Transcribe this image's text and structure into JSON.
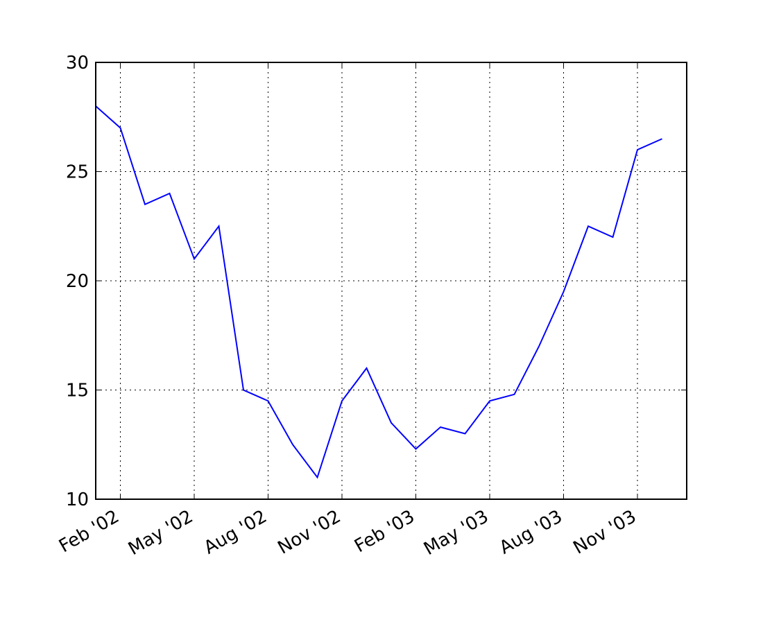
{
  "chart_data": {
    "type": "line",
    "x": [
      "2002-01",
      "2002-02",
      "2002-03",
      "2002-04",
      "2002-05",
      "2002-06",
      "2002-07",
      "2002-08",
      "2002-09",
      "2002-10",
      "2002-11",
      "2002-12",
      "2003-01",
      "2003-02",
      "2003-03",
      "2003-04",
      "2003-05",
      "2003-06",
      "2003-07",
      "2003-08",
      "2003-09",
      "2003-10",
      "2003-11",
      "2003-12"
    ],
    "series": [
      {
        "color": "#0000ff",
        "values": [
          28,
          27,
          23.5,
          24,
          21,
          22.5,
          15,
          14.5,
          12.5,
          11,
          14.5,
          16,
          13.5,
          12.3,
          13.3,
          13,
          14.5,
          14.8,
          17,
          19.5,
          22.5,
          22,
          26,
          26.5
        ]
      }
    ],
    "xlim": [
      "2002-01",
      "2004-01"
    ],
    "xticks": [
      {
        "value": "2002-02",
        "label": "Feb '02"
      },
      {
        "value": "2002-05",
        "label": "May '02"
      },
      {
        "value": "2002-08",
        "label": "Aug '02"
      },
      {
        "value": "2002-11",
        "label": "Nov '02"
      },
      {
        "value": "2003-02",
        "label": "Feb '03"
      },
      {
        "value": "2003-05",
        "label": "May '03"
      },
      {
        "value": "2003-08",
        "label": "Aug '03"
      },
      {
        "value": "2003-11",
        "label": "Nov '03"
      }
    ],
    "ylim": [
      10,
      30
    ],
    "yticks": [
      10,
      15,
      20,
      25,
      30
    ],
    "grid": true
  }
}
